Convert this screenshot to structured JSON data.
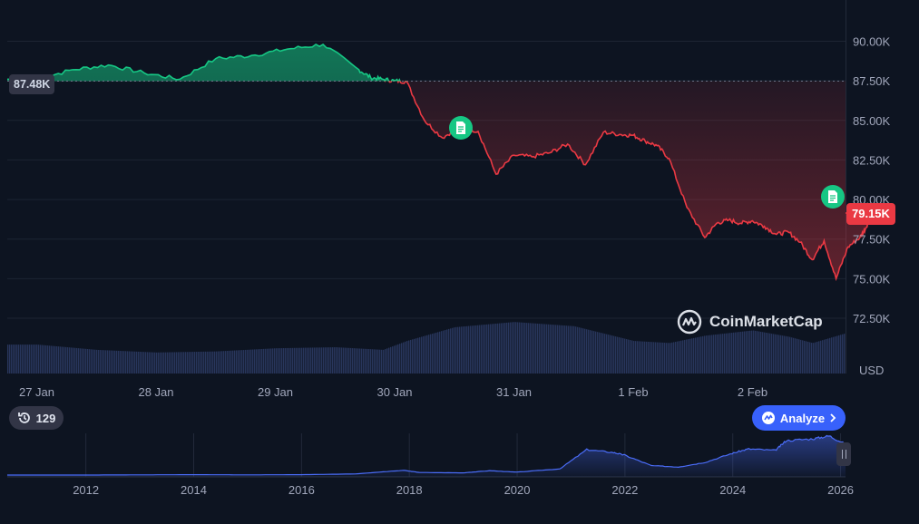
{
  "chart_data": {
    "type": "area",
    "currency_label": "USD",
    "y_ticks": [
      "90.00K",
      "87.50K",
      "85.00K",
      "82.50K",
      "80.00K",
      "77.50K",
      "75.00K",
      "72.50K"
    ],
    "y_tick_values": [
      90000,
      87500,
      85000,
      82500,
      80000,
      77500,
      75000,
      72500
    ],
    "ylim": [
      70000,
      92500
    ],
    "x_ticks": [
      "27 Jan",
      "28 Jan",
      "29 Jan",
      "30 Jan",
      "31 Jan",
      "1 Feb",
      "2 Feb"
    ],
    "baseline_value": 87480,
    "baseline_label": "87.48K",
    "current_value": 79150,
    "current_label": "79.15K",
    "price_series": {
      "x": [
        0,
        0.3,
        0.6,
        0.9,
        1.2,
        1.5,
        1.8,
        2.1,
        2.4,
        2.7,
        2.8,
        2.9,
        3.0,
        3.1,
        3.25,
        3.4,
        3.55,
        3.7,
        3.85,
        4.0,
        4.15,
        4.3,
        4.45,
        4.6,
        4.75,
        4.9,
        5.0,
        5.1,
        5.2,
        5.3,
        5.45,
        5.6,
        5.7,
        5.8,
        5.9,
        6.0,
        6.1,
        6.2,
        6.3,
        6.4,
        6.5,
        6.6,
        6.7,
        6.8,
        6.9,
        6.95,
        7.0
      ],
      "y": [
        87600,
        88200,
        88500,
        88000,
        87600,
        88900,
        89100,
        89500,
        89800,
        88200,
        87700,
        87600,
        87500,
        87450,
        85000,
        83900,
        84600,
        84300,
        81600,
        82800,
        82700,
        82950,
        83500,
        82200,
        84250,
        84100,
        84050,
        83700,
        83400,
        82600,
        79500,
        77600,
        78500,
        78700,
        78500,
        78650,
        78300,
        77800,
        77950,
        77300,
        76200,
        77400,
        75000,
        77000,
        77600,
        78200,
        79150
      ]
    },
    "volume_series": {
      "x": [
        0,
        0.5,
        1.0,
        1.5,
        2.0,
        2.5,
        2.9,
        3.1,
        3.5,
        4.0,
        4.5,
        5.0,
        5.3,
        5.6,
        6.0,
        6.3,
        6.5,
        6.8,
        7.0
      ],
      "v": [
        0.55,
        0.45,
        0.4,
        0.42,
        0.48,
        0.5,
        0.45,
        0.62,
        0.88,
        0.98,
        0.9,
        0.62,
        0.58,
        0.72,
        0.82,
        0.7,
        0.58,
        0.78,
        0.9
      ]
    },
    "overview": {
      "x_ticks": [
        "2012",
        "2014",
        "2016",
        "2018",
        "2020",
        "2022",
        "2024",
        "2026"
      ],
      "x_tick_years": [
        2012,
        2014,
        2016,
        2018,
        2020,
        2022,
        2024,
        2026
      ],
      "x_range": [
        2010.55,
        2026.1
      ],
      "series_years": [
        2010.55,
        2012,
        2013,
        2014,
        2015,
        2016,
        2017,
        2017.9,
        2018.2,
        2019,
        2019.5,
        2020,
        2020.8,
        2021.3,
        2021.8,
        2022,
        2022.5,
        2023,
        2023.5,
        2024,
        2024.3,
        2024.8,
        2025,
        2025.5,
        2025.8,
        2026.1
      ],
      "series_values": [
        0,
        0,
        0.005,
        0.01,
        0.005,
        0.01,
        0.03,
        0.13,
        0.07,
        0.06,
        0.12,
        0.08,
        0.17,
        0.7,
        0.62,
        0.55,
        0.26,
        0.22,
        0.35,
        0.6,
        0.72,
        0.68,
        0.95,
        1.0,
        1.08,
        0.85
      ]
    }
  },
  "ui": {
    "history_count": "129",
    "analyze_label": "Analyze",
    "watermark_text": "CoinMarketCap",
    "accent_up": "#16c784",
    "accent_down": "#ea3943",
    "accent_button": "#3861fb"
  }
}
